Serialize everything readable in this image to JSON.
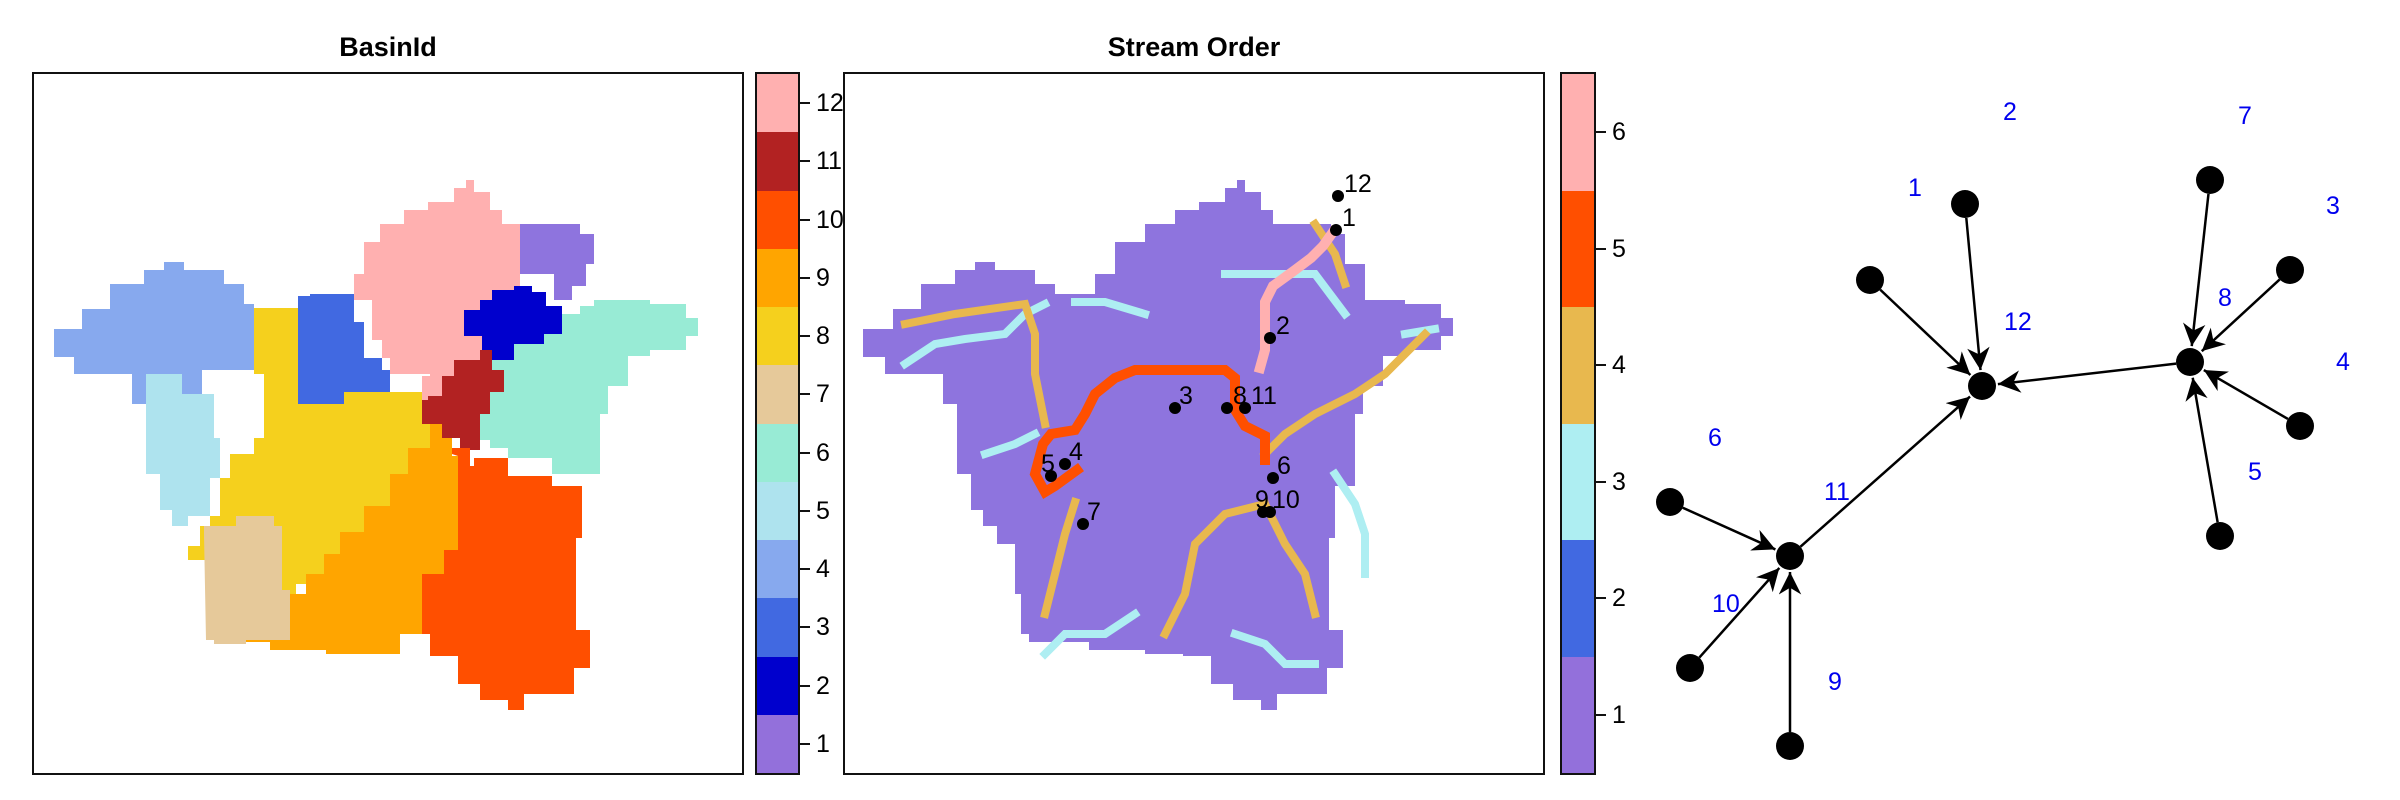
{
  "panels": {
    "basin": {
      "title": "BasinId"
    },
    "stream": {
      "title": "Stream Order"
    }
  },
  "basin_colorbar": {
    "labels": [
      "1",
      "2",
      "3",
      "4",
      "5",
      "6",
      "7",
      "8",
      "9",
      "10",
      "11",
      "12"
    ],
    "colors": [
      "#9370DB",
      "#0000CD",
      "#4169E1",
      "#87A9EE",
      "#AEE3EE",
      "#98EBD5",
      "#E6C99A",
      "#F5D01D",
      "#FFA500",
      "#FF4F00",
      "#B22222",
      "#FFB0B0"
    ]
  },
  "stream_colorbar": {
    "labels": [
      "1",
      "2",
      "3",
      "4",
      "5",
      "6"
    ],
    "colors": [
      "#9370DB",
      "#4169E1",
      "#AEEEF2",
      "#E8B84E",
      "#FF4F00",
      "#FFB0B0"
    ]
  },
  "stream_outlets": [
    "12",
    "1",
    "2",
    "3",
    "8",
    "11",
    "5",
    "4",
    "6",
    "9",
    "10",
    "7"
  ],
  "graph": {
    "label_color": "#0000EE",
    "node_labels": [
      "1",
      "2",
      "3",
      "4",
      "5",
      "6",
      "7",
      "8",
      "9",
      "10",
      "11",
      "12"
    ],
    "edges": [
      [
        1,
        12
      ],
      [
        2,
        12
      ],
      [
        11,
        12
      ],
      [
        8,
        12
      ],
      [
        7,
        8
      ],
      [
        3,
        8
      ],
      [
        4,
        8
      ],
      [
        5,
        8
      ],
      [
        6,
        11
      ],
      [
        10,
        11
      ],
      [
        9,
        11
      ]
    ]
  }
}
